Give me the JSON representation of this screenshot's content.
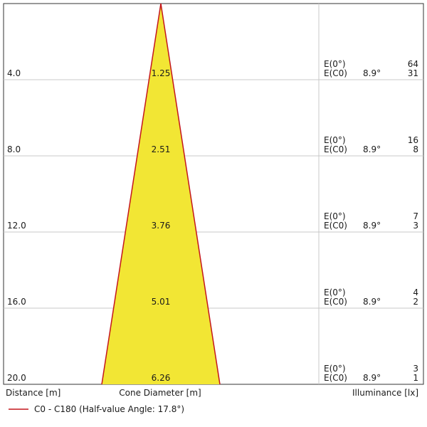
{
  "chart_data": {
    "type": "area",
    "cone_color": "#f2e634",
    "edge_color": "#c4161c",
    "grid_color": "#c8c8c8",
    "frame_color": "#333333",
    "max_distance": 22,
    "half_value_angle_deg": 17.8,
    "rows": [
      {
        "distance_label": "4.0",
        "distance": 4,
        "diameter_label": "1.25",
        "diameter": 1.25,
        "e0_label": "E(0°)",
        "e0": "64",
        "ec0_label": "E(C0)",
        "angle": "8.9°",
        "ec0": "31"
      },
      {
        "distance_label": "8.0",
        "distance": 8,
        "diameter_label": "2.51",
        "diameter": 2.51,
        "e0_label": "E(0°)",
        "e0": "16",
        "ec0_label": "E(C0)",
        "angle": "8.9°",
        "ec0": "8"
      },
      {
        "distance_label": "12.0",
        "distance": 12,
        "diameter_label": "3.76",
        "diameter": 3.76,
        "e0_label": "E(0°)",
        "e0": "7",
        "ec0_label": "E(C0)",
        "angle": "8.9°",
        "ec0": "3"
      },
      {
        "distance_label": "16.0",
        "distance": 16,
        "diameter_label": "5.01",
        "diameter": 5.01,
        "e0_label": "E(0°)",
        "e0": "4",
        "ec0_label": "E(C0)",
        "angle": "8.9°",
        "ec0": "2"
      },
      {
        "distance_label": "20.0",
        "distance": 20,
        "diameter_label": "6.26",
        "diameter": 6.26,
        "e0_label": "E(0°)",
        "e0": "3",
        "ec0_label": "E(C0)",
        "angle": "8.9°",
        "ec0": "1"
      }
    ],
    "footer": {
      "distance_label": "Distance [m]",
      "diameter_label": "Cone Diameter [m]",
      "illuminance_label": "Illuminance [lx]"
    },
    "legend": {
      "series_label": "C0 - C180 (Half-value Angle: 17.8°)"
    }
  }
}
